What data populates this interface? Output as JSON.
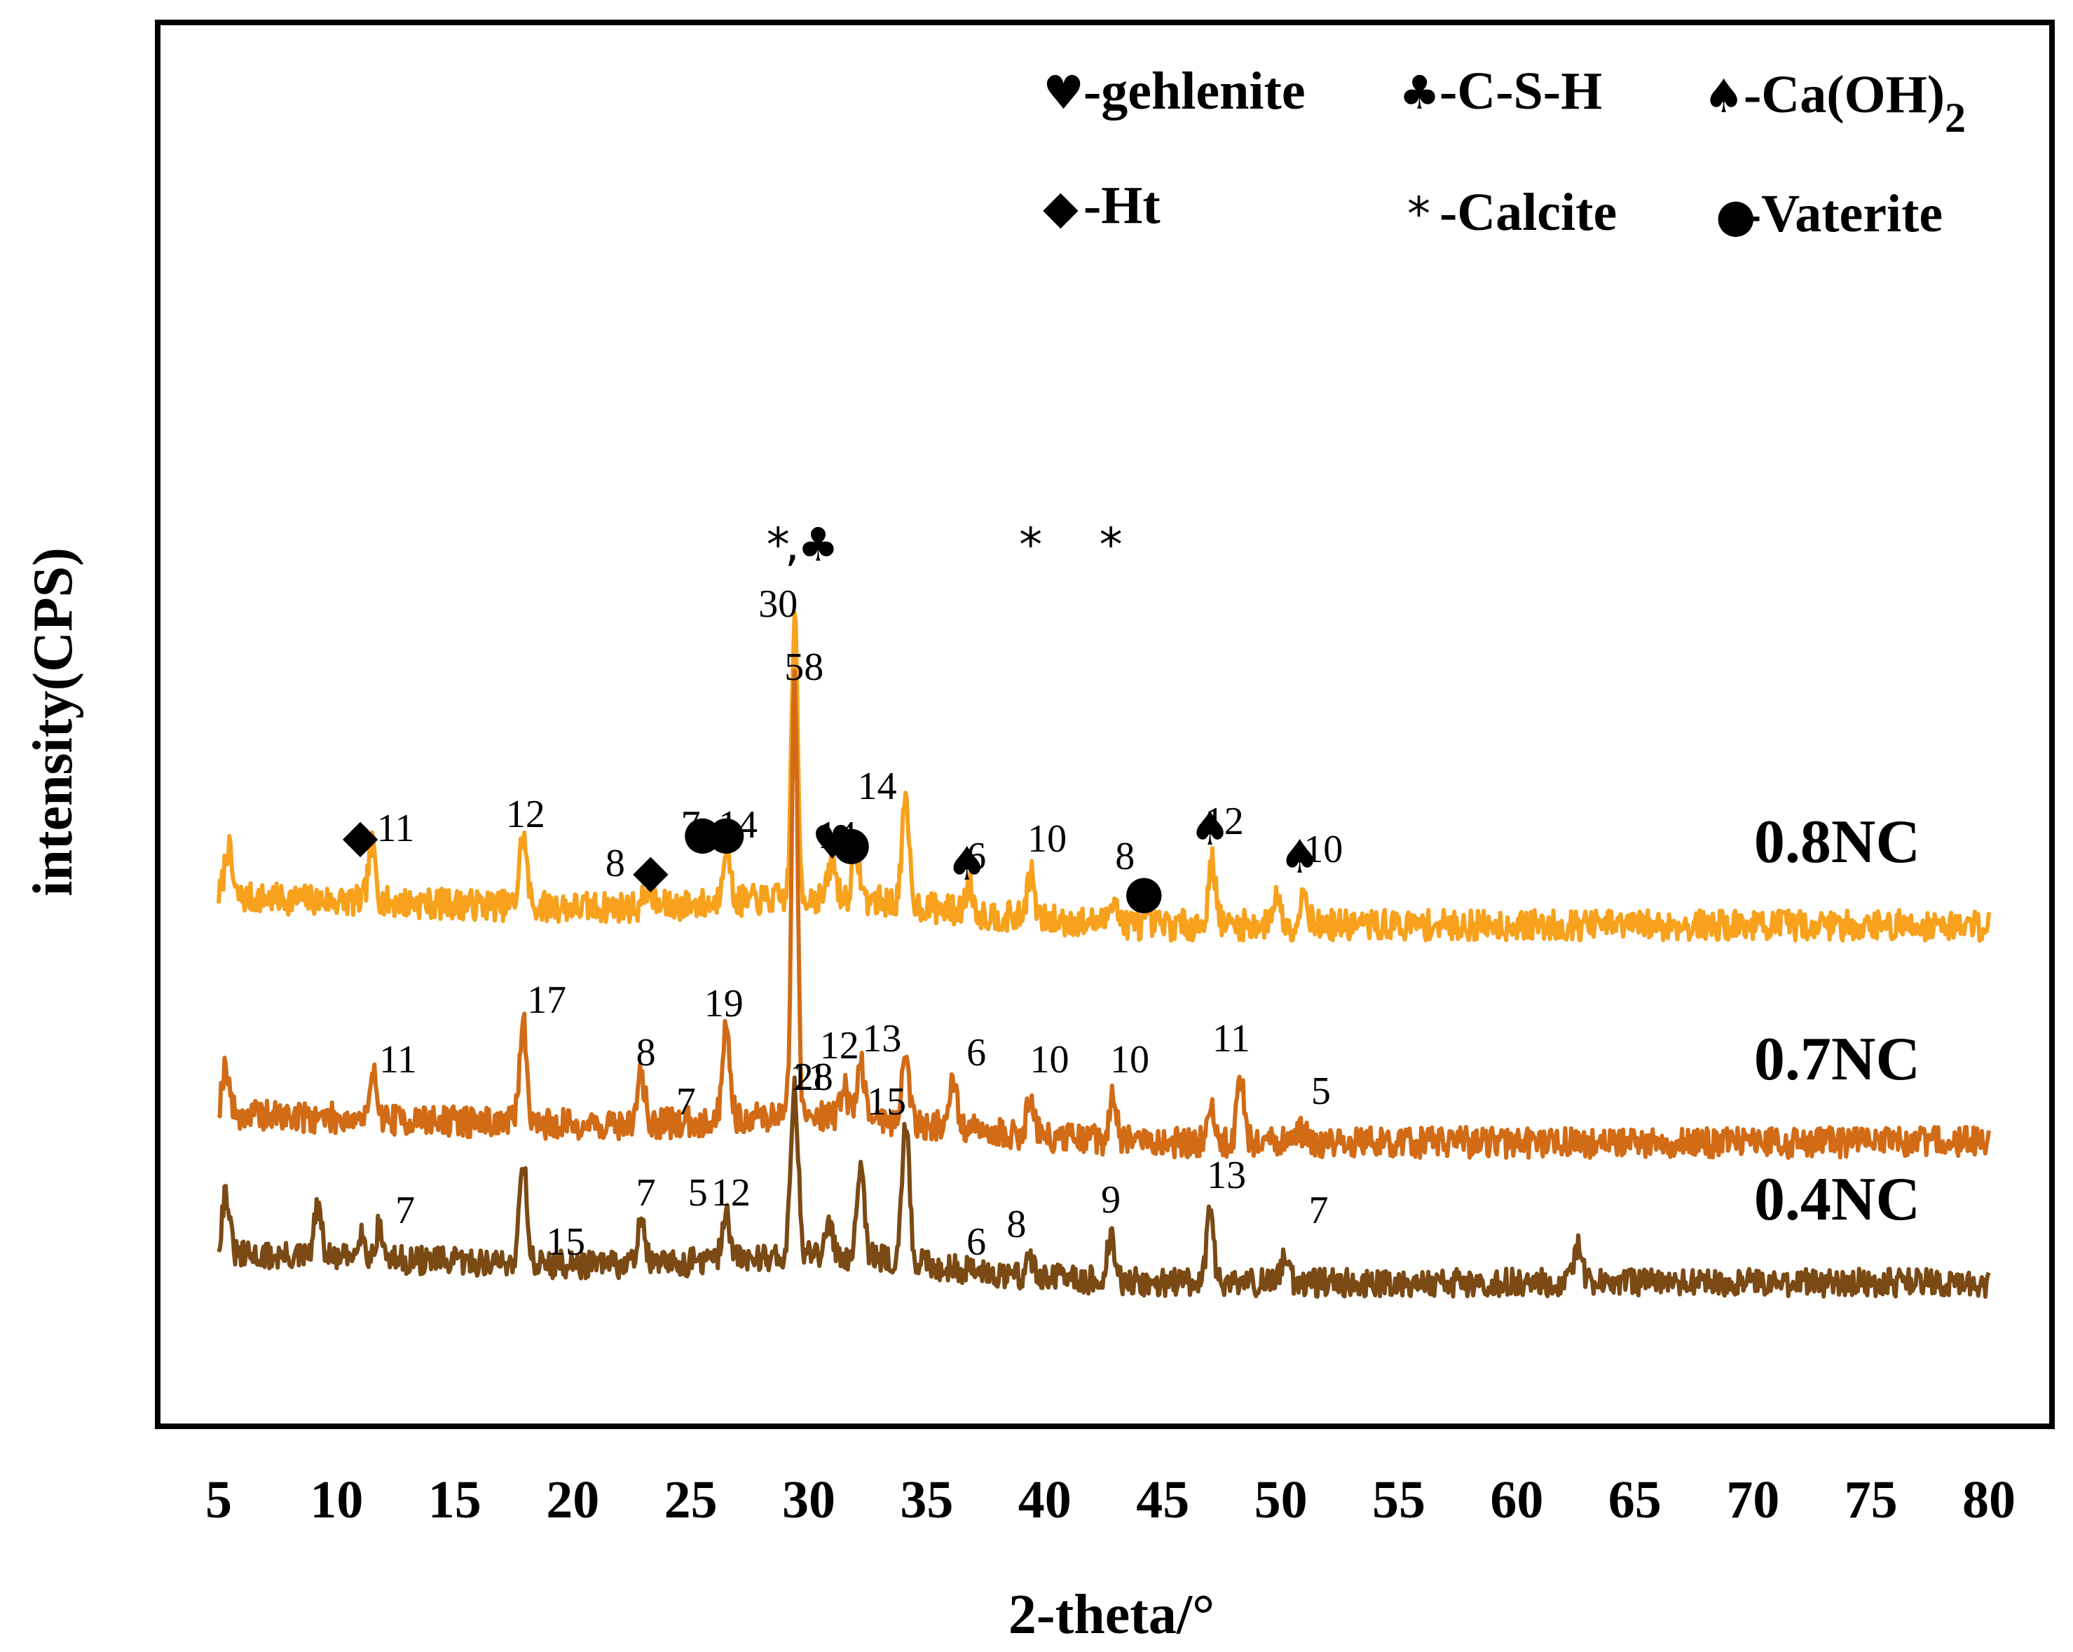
{
  "chart_data": {
    "type": "line",
    "title": "",
    "xlabel": "2-theta/°",
    "ylabel": "intensity(CPS)",
    "xlim": [
      5,
      80
    ],
    "xticks": [
      "5",
      "10",
      "15",
      "20",
      "25",
      "30",
      "35",
      "40",
      "45",
      "50",
      "55",
      "60",
      "65",
      "70",
      "75",
      "80"
    ],
    "grid": false,
    "legend_position": "top-right",
    "legend": [
      {
        "symbol": "♥",
        "text": "-gehlenite"
      },
      {
        "symbol": "♣",
        "text": "-C-S-H"
      },
      {
        "symbol": "♠",
        "text": "-Ca(OH)",
        "sub": "2"
      },
      {
        "symbol": "◆",
        "text": "-Ht"
      },
      {
        "symbol": "*",
        "text": "-Calcite"
      },
      {
        "symbol": "●",
        "text": "-Vaterite"
      }
    ],
    "series": [
      {
        "name": "0.8NC",
        "color": "#f7a11c",
        "baseline": 700,
        "noise": 22,
        "seed": 7,
        "peaks": [
          [
            5.4,
            70
          ],
          [
            11.5,
            80
          ],
          [
            17.9,
            100
          ],
          [
            23.2,
            30
          ],
          [
            26.5,
            85
          ],
          [
            29.4,
            400
          ],
          [
            31.0,
            55
          ],
          [
            32.0,
            70
          ],
          [
            34.1,
            140
          ],
          [
            36.8,
            40
          ],
          [
            39.4,
            65
          ],
          [
            42.9,
            40
          ],
          [
            47.1,
            90
          ],
          [
            49.8,
            45
          ],
          [
            51.0,
            50
          ]
        ],
        "labels": [
          {
            "x": 12.5,
            "text": "11"
          },
          {
            "x": 18.0,
            "text": "12"
          },
          {
            "x": 21.8,
            "text": "8"
          },
          {
            "x": 25.0,
            "text": "7"
          },
          {
            "x": 27.0,
            "text": "14"
          },
          {
            "x": 28.7,
            "text": "30"
          },
          {
            "x": 31.2,
            "text": "14"
          },
          {
            "x": 32.9,
            "text": "14"
          },
          {
            "x": 37.1,
            "text": "6"
          },
          {
            "x": 40.1,
            "text": "10"
          },
          {
            "x": 43.4,
            "text": "8"
          },
          {
            "x": 47.6,
            "text": "12"
          },
          {
            "x": 51.8,
            "text": "10"
          }
        ],
        "markers": [
          {
            "x": 11.0,
            "symbol": "◆"
          },
          {
            "x": 23.3,
            "symbol": "◆"
          },
          {
            "x": 25.5,
            "symbol": "●"
          },
          {
            "x": 26.5,
            "symbol": "●"
          },
          {
            "x": 28.7,
            "symbol": "*"
          },
          {
            "x": 29.3,
            "symbol": ","
          },
          {
            "x": 30.4,
            "symbol": "♣"
          },
          {
            "x": 31.0,
            "symbol": "♥"
          },
          {
            "x": 31.8,
            "symbol": "●"
          },
          {
            "x": 36.7,
            "symbol": "♠"
          },
          {
            "x": 39.4,
            "symbol": "*"
          },
          {
            "x": 42.8,
            "symbol": "*"
          },
          {
            "x": 44.2,
            "symbol": "●"
          },
          {
            "x": 47.0,
            "symbol": "♠"
          },
          {
            "x": 50.8,
            "symbol": "♠"
          }
        ]
      },
      {
        "name": "0.7NC",
        "color": "#d26b16",
        "baseline": 390,
        "noise": 22,
        "seed": 19,
        "peaks": [
          [
            5.3,
            70
          ],
          [
            11.6,
            60
          ],
          [
            17.9,
            145
          ],
          [
            22.9,
            70
          ],
          [
            26.5,
            140
          ],
          [
            29.4,
            620
          ],
          [
            31.5,
            40
          ],
          [
            32.2,
            80
          ],
          [
            34.1,
            90
          ],
          [
            36.1,
            70
          ],
          [
            39.4,
            60
          ],
          [
            42.9,
            60
          ],
          [
            47.0,
            55
          ],
          [
            48.3,
            90
          ],
          [
            50.9,
            15
          ]
        ],
        "labels": [
          {
            "x": 12.6,
            "text": "11"
          },
          {
            "x": 18.9,
            "text": "17"
          },
          {
            "x": 23.1,
            "text": "8"
          },
          {
            "x": 24.8,
            "text": "7"
          },
          {
            "x": 26.4,
            "text": "19"
          },
          {
            "x": 29.8,
            "text": "58"
          },
          {
            "x": 31.3,
            "text": "12"
          },
          {
            "x": 33.1,
            "text": "13"
          },
          {
            "x": 37.1,
            "text": "6"
          },
          {
            "x": 40.2,
            "text": "10"
          },
          {
            "x": 43.6,
            "text": "10"
          },
          {
            "x": 47.9,
            "text": "11"
          },
          {
            "x": 51.7,
            "text": "5"
          }
        ],
        "markers": []
      },
      {
        "name": "0.4NC",
        "color": "#7b4a14",
        "baseline": 190,
        "noise": 20,
        "seed": 31,
        "peaks": [
          [
            5.3,
            90
          ],
          [
            9.2,
            70
          ],
          [
            11.0,
            40
          ],
          [
            11.8,
            45
          ],
          [
            17.9,
            150
          ],
          [
            22.9,
            70
          ],
          [
            26.5,
            70
          ],
          [
            29.4,
            235
          ],
          [
            30.9,
            40
          ],
          [
            32.2,
            140
          ],
          [
            34.1,
            200
          ],
          [
            39.4,
            25
          ],
          [
            42.8,
            60
          ],
          [
            47.0,
            95
          ],
          [
            50.2,
            45
          ],
          [
            62.6,
            50
          ]
        ],
        "labels": [
          {
            "x": 12.9,
            "text": "7"
          },
          {
            "x": 19.7,
            "text": "15"
          },
          {
            "x": 23.1,
            "text": "7"
          },
          {
            "x": 25.3,
            "text": "5"
          },
          {
            "x": 26.7,
            "text": "12"
          },
          {
            "x": 30.2,
            "text": "28"
          },
          {
            "x": 30.0,
            "text": "11"
          },
          {
            "x": 33.3,
            "text": "15"
          },
          {
            "x": 37.1,
            "text": "6"
          },
          {
            "x": 38.8,
            "text": "8"
          },
          {
            "x": 42.8,
            "text": "9"
          },
          {
            "x": 47.7,
            "text": "13"
          },
          {
            "x": 51.6,
            "text": "7"
          }
        ],
        "markers": []
      }
    ]
  }
}
